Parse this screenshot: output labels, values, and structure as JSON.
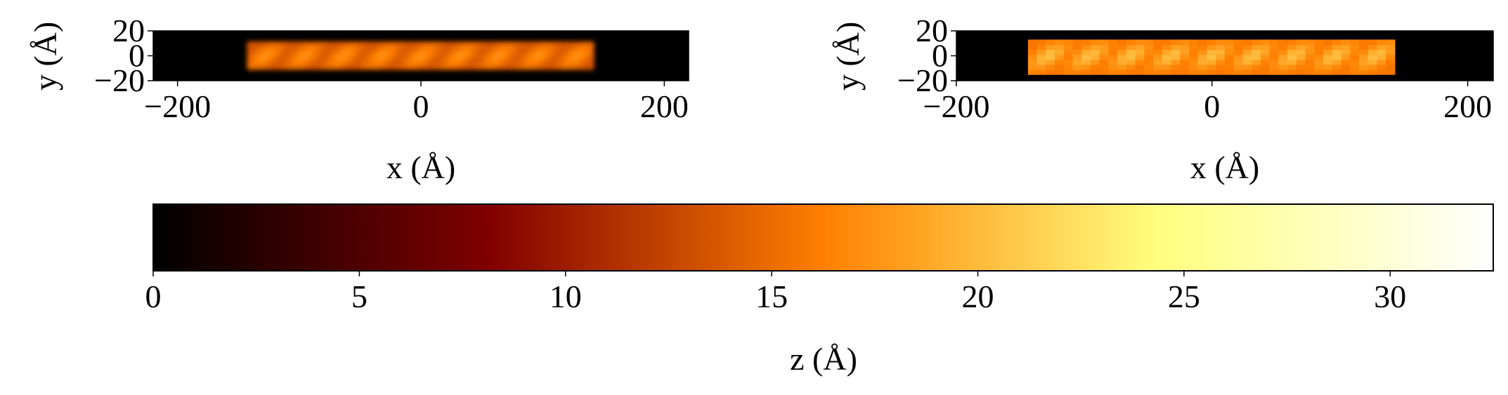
{
  "chart_data": [
    {
      "type": "heatmap",
      "panel": "left",
      "rendering": "smooth",
      "xlabel": "x (Å)",
      "ylabel": "y (Å)",
      "xlim": [
        -220,
        220
      ],
      "ylim": [
        -20,
        20
      ],
      "xticks": [
        -200,
        0,
        200
      ],
      "xtick_labels": [
        "−200",
        "0",
        "200"
      ],
      "yticks": [
        20,
        0,
        -20
      ],
      "ytick_labels": [
        "20",
        "0",
        "−20"
      ],
      "background": "#000000",
      "molecule": {
        "x_range": [
          -143,
          143
        ],
        "y_range": [
          -11,
          11
        ],
        "lobes": [
          -128,
          -96,
          -64,
          -32,
          0,
          32,
          64,
          96,
          128
        ],
        "z_peak": 17
      }
    },
    {
      "type": "heatmap",
      "panel": "right",
      "rendering": "pixelated",
      "xlabel": "x (Å)",
      "ylabel": "y (Å)",
      "xlim": [
        -200,
        220
      ],
      "ylim": [
        -20,
        20
      ],
      "xticks": [
        -200,
        0,
        200
      ],
      "xtick_labels": [
        "−200",
        "0",
        "200"
      ],
      "yticks": [
        20,
        0,
        -20
      ],
      "ytick_labels": [
        "20",
        "0",
        "−20"
      ],
      "background": "#000000",
      "molecule": {
        "x_range": [
          -146,
          146
        ],
        "y_range": [
          -14,
          14
        ],
        "lobes": [
          -128,
          -96,
          -64,
          -32,
          0,
          32,
          64,
          96,
          128
        ],
        "z_peak": 20
      }
    },
    {
      "type": "colorbar",
      "colormap": "afmhot",
      "orientation": "horizontal",
      "label": "z (Å)",
      "lim": [
        0,
        32.5
      ],
      "ticks": [
        0,
        5,
        10,
        15,
        20,
        25,
        30
      ],
      "tick_labels": [
        "0",
        "5",
        "10",
        "15",
        "20",
        "25",
        "30"
      ]
    }
  ]
}
